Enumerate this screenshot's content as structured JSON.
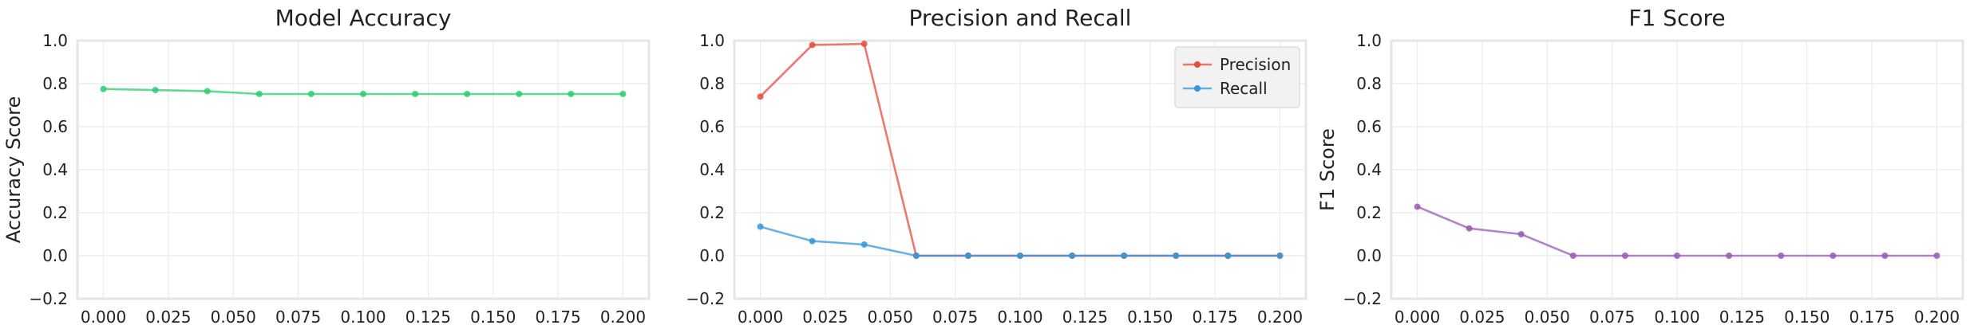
{
  "chart_data": [
    {
      "type": "line",
      "title": "Model Accuracy",
      "xlabel": "",
      "ylabel": "Accuracy Score",
      "xlim": [
        -0.01,
        0.21
      ],
      "ylim": [
        -0.2,
        1.0
      ],
      "xticks": [
        0.0,
        0.025,
        0.05,
        0.075,
        0.1,
        0.125,
        0.15,
        0.175,
        0.2
      ],
      "xtick_labels": [
        "0.000",
        "0.025",
        "0.050",
        "0.075",
        "0.100",
        "0.125",
        "0.150",
        "0.175",
        "0.200"
      ],
      "yticks": [
        -0.2,
        0.0,
        0.2,
        0.4,
        0.6,
        0.8,
        1.0
      ],
      "ytick_labels": [
        "−0.2",
        "0.0",
        "0.2",
        "0.4",
        "0.6",
        "0.8",
        "1.0"
      ],
      "grid": true,
      "x": [
        0.0,
        0.02,
        0.04,
        0.06,
        0.08,
        0.1,
        0.12,
        0.14,
        0.16,
        0.18,
        0.2
      ],
      "series": [
        {
          "values": [
            0.775,
            0.77,
            0.765,
            0.752,
            0.752,
            0.752,
            0.752,
            0.752,
            0.752,
            0.752,
            0.752
          ],
          "color": "#2ecc71"
        }
      ]
    },
    {
      "type": "line",
      "title": "Precision and Recall",
      "xlabel": "",
      "ylabel": "",
      "xlim": [
        -0.01,
        0.21
      ],
      "ylim": [
        -0.2,
        1.0
      ],
      "xticks": [
        0.0,
        0.025,
        0.05,
        0.075,
        0.1,
        0.125,
        0.15,
        0.175,
        0.2
      ],
      "xtick_labels": [
        "0.000",
        "0.025",
        "0.050",
        "0.075",
        "0.100",
        "0.125",
        "0.150",
        "0.175",
        "0.200"
      ],
      "yticks": [
        -0.2,
        0.0,
        0.2,
        0.4,
        0.6,
        0.8,
        1.0
      ],
      "ytick_labels": [
        "−0.2",
        "0.0",
        "0.2",
        "0.4",
        "0.6",
        "0.8",
        "1.0"
      ],
      "grid": true,
      "legend": "top-right",
      "x": [
        0.0,
        0.02,
        0.04,
        0.06,
        0.08,
        0.1,
        0.12,
        0.14,
        0.16,
        0.18,
        0.2
      ],
      "series": [
        {
          "name": "Precision",
          "values": [
            0.74,
            0.98,
            0.985,
            0.0,
            0.0,
            0.0,
            0.0,
            0.0,
            0.0,
            0.0,
            0.0
          ],
          "color": "#e74c3c"
        },
        {
          "name": "Recall",
          "values": [
            0.135,
            0.068,
            0.052,
            0.0,
            0.0,
            0.0,
            0.0,
            0.0,
            0.0,
            0.0,
            0.0
          ],
          "color": "#3498db"
        }
      ]
    },
    {
      "type": "line",
      "title": "F1 Score",
      "xlabel": "",
      "ylabel": "F1 Score",
      "xlim": [
        -0.01,
        0.21
      ],
      "ylim": [
        -0.2,
        1.0
      ],
      "xticks": [
        0.0,
        0.025,
        0.05,
        0.075,
        0.1,
        0.125,
        0.15,
        0.175,
        0.2
      ],
      "xtick_labels": [
        "0.000",
        "0.025",
        "0.050",
        "0.075",
        "0.100",
        "0.125",
        "0.150",
        "0.175",
        "0.200"
      ],
      "yticks": [
        -0.2,
        0.0,
        0.2,
        0.4,
        0.6,
        0.8,
        1.0
      ],
      "ytick_labels": [
        "−0.2",
        "0.0",
        "0.2",
        "0.4",
        "0.6",
        "0.8",
        "1.0"
      ],
      "grid": true,
      "x": [
        0.0,
        0.02,
        0.04,
        0.06,
        0.08,
        0.1,
        0.12,
        0.14,
        0.16,
        0.18,
        0.2
      ],
      "series": [
        {
          "values": [
            0.228,
            0.127,
            0.1,
            0.0,
            0.0,
            0.0,
            0.0,
            0.0,
            0.0,
            0.0,
            0.0
          ],
          "color": "#9b59b6"
        }
      ]
    }
  ]
}
